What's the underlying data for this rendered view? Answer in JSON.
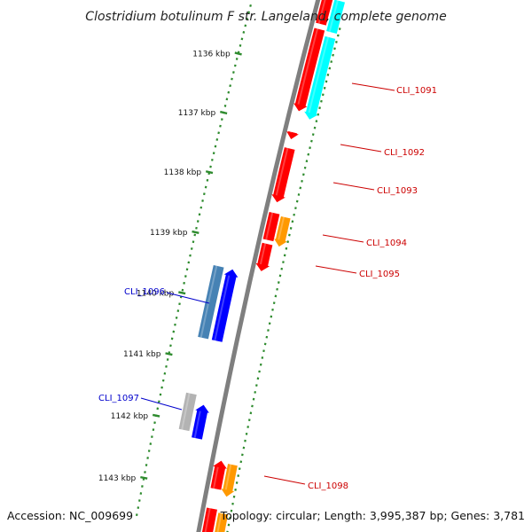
{
  "title": "Clostridium botulinum F str. Langeland, complete genome",
  "footer": {
    "accession": "Accession: NC_009699",
    "topology": "Topology: circular; Length: 3,995,387 bp; Genes: 3,781"
  },
  "ticks": [
    {
      "label": "1136 kbp",
      "t": 0.14
    },
    {
      "label": "1137 kbp",
      "t": 0.25
    },
    {
      "label": "1138 kbp",
      "t": 0.36
    },
    {
      "label": "1139 kbp",
      "t": 0.47
    },
    {
      "label": "1140 kbp",
      "t": 0.58
    },
    {
      "label": "1141 kbp",
      "t": 0.69
    },
    {
      "label": "1142 kbp",
      "t": 0.8
    },
    {
      "label": "1143 kbp",
      "t": 0.91
    }
  ],
  "genes": [
    {
      "name": "CLI_1091",
      "color": "#cc0000"
    },
    {
      "name": "CLI_1092",
      "color": "#cc0000"
    },
    {
      "name": "CLI_1093",
      "color": "#cc0000"
    },
    {
      "name": "CLI_1094",
      "color": "#cc0000"
    },
    {
      "name": "CLI_1095",
      "color": "#cc0000"
    },
    {
      "name": "CLI_1096",
      "color": "#0000cc"
    },
    {
      "name": "CLI_1097",
      "color": "#0000cc"
    },
    {
      "name": "CLI_1098",
      "color": "#cc0000"
    }
  ],
  "colors": {
    "backbone": "#7f7f7f",
    "tick": "#2e8b2e",
    "red": "#ff0000",
    "cyan": "#00ffff",
    "orange": "#ff9900",
    "blue": "#0000ff",
    "steel": "#4682b4",
    "gray": "#b3b3b3"
  }
}
